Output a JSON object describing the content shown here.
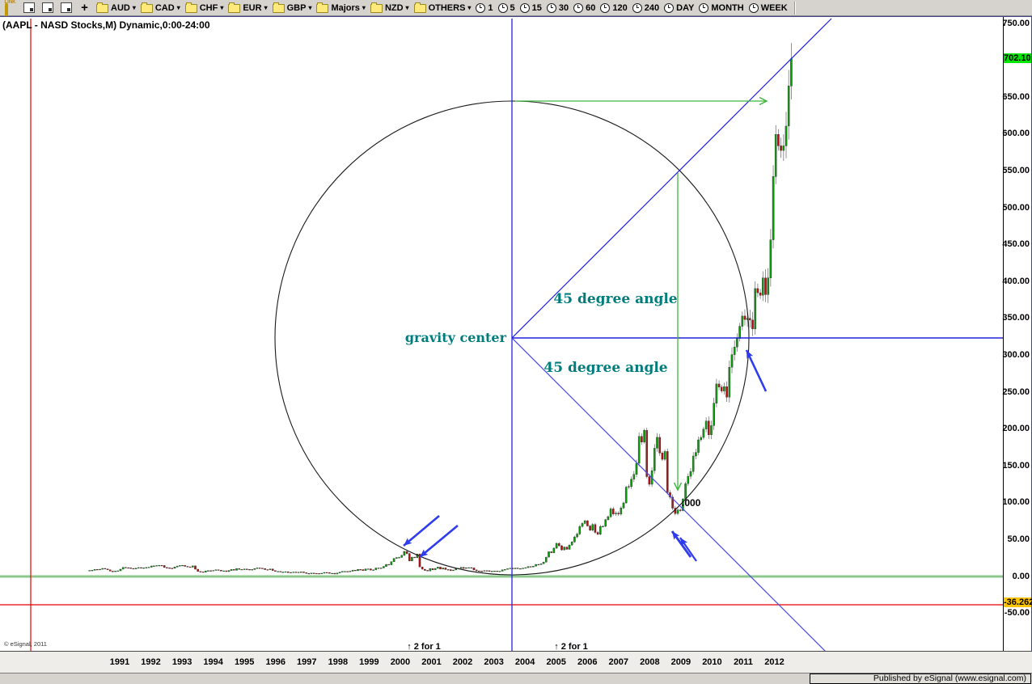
{
  "toolbar": {
    "window_icons": [
      {
        "name": "link-icon",
        "label": "LINK"
      },
      {
        "name": "new-chart-icon",
        "label": ""
      },
      {
        "name": "duplicate-chart-icon",
        "label": ""
      },
      {
        "name": "chart-properties-icon",
        "label": ""
      },
      {
        "name": "add-symbol-icon",
        "label": "+"
      }
    ],
    "symbol_folders": [
      "AUD",
      "CAD",
      "CHF",
      "EUR",
      "GBP",
      "Majors",
      "NZD",
      "OTHERS"
    ],
    "dropdown_glyph": "▾",
    "intervals": [
      "1",
      "5",
      "15",
      "30",
      "60",
      "120",
      "240",
      "DAY",
      "MONTH",
      "WEEK"
    ]
  },
  "chart": {
    "title": "(AAPL - NASD Stocks,M) Dynamic,0:00-24:00",
    "copyright": "© eSignal, 2011",
    "annotations": {
      "gravity_center": "gravity center",
      "angle_upper": "45 degree angle",
      "angle_lower": "45 degree angle",
      "split_left": "↑ 2 for 1",
      "split_right": "↑ 2 for 1",
      "price_note": ".000"
    },
    "price_axis": {
      "tick_values": [
        750,
        650,
        600,
        550,
        500,
        450,
        400,
        350,
        300,
        250,
        200,
        150,
        100,
        50,
        0,
        -50
      ],
      "last_price_label": {
        "text": "702.10",
        "value": 702.1
      },
      "alert_price_label": {
        "text": "-36.262",
        "value": -36.262
      }
    },
    "x_axis_years": [
      1991,
      1992,
      1993,
      1994,
      1995,
      1996,
      1997,
      1998,
      1999,
      2000,
      2001,
      2002,
      2003,
      2004,
      2005,
      2006,
      2007,
      2008,
      2009,
      2010,
      2011,
      2012
    ],
    "status_bar": {
      "published": "Published by eSignal (www.esignal.com)"
    }
  },
  "colors": {
    "accent_teal": "#007c7c",
    "line_blue": "#2222e0",
    "arrow_blue": "#2e3bee",
    "arrow_green": "#3cb83c",
    "grid_red": "#e80000",
    "zero_green": "#8cc88c",
    "candle_up": "#0a9e0a",
    "candle_down": "#b41414",
    "last_price_bg": "#00e600",
    "alert_price_bg": "#ffc400"
  },
  "chart_data": {
    "type": "candlestick",
    "symbol": "AAPL",
    "interval": "monthly",
    "title": "(AAPL - NASD Stocks,M) Dynamic,0:00-24:00",
    "start_month": "1990-01",
    "first_open": 8.0,
    "y_axis_range": [
      -57,
      757
    ],
    "x_axis_years": [
      1991,
      2012
    ],
    "last_price": 702.1,
    "alert_level": -36.262,
    "monthly_closes": {
      "1990": [
        8.2,
        8.4,
        9.7,
        9.5,
        9.8,
        11.0,
        10.2,
        9.1,
        7.2,
        6.9,
        7.3,
        7.7
      ],
      "1991": [
        9.9,
        12.4,
        12.0,
        11.7,
        10.9,
        10.1,
        11.2,
        12.1,
        11.4,
        11.7,
        12.2,
        12.6
      ],
      "1992": [
        14.2,
        14.4,
        14.8,
        15.1,
        14.9,
        12.2,
        11.7,
        11.2,
        11.0,
        12.8,
        14.1,
        14.9
      ],
      "1993": [
        15.1,
        13.7,
        13.1,
        12.7,
        14.4,
        9.9,
        6.8,
        6.4,
        5.8,
        7.6,
        7.9,
        7.3
      ],
      "1994": [
        8.2,
        9.1,
        8.5,
        7.3,
        7.7,
        6.6,
        8.1,
        9.5,
        8.4,
        10.8,
        9.6,
        9.7
      ],
      "1995": [
        10.1,
        9.7,
        8.8,
        9.5,
        10.8,
        11.6,
        11.3,
        10.7,
        9.3,
        9.1,
        10.2,
        8.0
      ],
      "1996": [
        6.9,
        6.9,
        6.1,
        6.1,
        6.5,
        5.2,
        5.5,
        6.0,
        5.5,
        5.8,
        6.2,
        5.2
      ],
      "1997": [
        4.2,
        4.1,
        4.6,
        4.3,
        4.2,
        3.6,
        4.4,
        5.5,
        5.4,
        4.3,
        4.4,
        3.3
      ],
      "1998": [
        4.6,
        5.9,
        6.9,
        6.9,
        6.7,
        7.2,
        8.6,
        7.8,
        9.5,
        9.3,
        8.0,
        10.2
      ],
      "1999": [
        10.3,
        8.7,
        9.0,
        11.5,
        11.0,
        11.6,
        13.6,
        16.3,
        15.8,
        20.0,
        24.5,
        25.7
      ],
      "2000": [
        25.9,
        28.6,
        33.9,
        31.0,
        21.0,
        26.2,
        25.4,
        30.4,
        12.9,
        9.8,
        8.3,
        7.4
      ],
      "2001": [
        10.8,
        9.1,
        11.0,
        12.7,
        10.0,
        11.6,
        9.4,
        9.3,
        7.8,
        8.8,
        10.6,
        11.0
      ],
      "2002": [
        12.4,
        10.9,
        11.8,
        12.1,
        11.6,
        8.9,
        7.6,
        7.4,
        7.3,
        8.0,
        7.8,
        7.2
      ],
      "2003": [
        7.2,
        7.5,
        7.1,
        7.1,
        9.0,
        9.5,
        10.5,
        11.3,
        10.4,
        11.4,
        10.5,
        10.7
      ],
      "2004": [
        11.3,
        12.0,
        13.5,
        12.9,
        14.0,
        16.3,
        16.2,
        17.3,
        19.4,
        26.2,
        33.5,
        32.2
      ],
      "2005": [
        38.4,
        44.9,
        41.7,
        36.1,
        39.8,
        36.8,
        42.6,
        46.9,
        53.6,
        57.6,
        67.8,
        71.9
      ],
      "2006": [
        75.5,
        68.5,
        62.7,
        70.4,
        59.8,
        57.3,
        67.9,
        68.0,
        77.0,
        81.1,
        91.7,
        84.8
      ],
      "2007": [
        85.7,
        84.6,
        92.9,
        99.8,
        121.2,
        122.0,
        131.8,
        138.5,
        153.5,
        189.9,
        182.2,
        198.1
      ],
      "2008": [
        135.4,
        125.0,
        143.5,
        173.9,
        188.7,
        167.4,
        158.9,
        169.5,
        113.7,
        107.6,
        92.7,
        85.4
      ],
      "2009": [
        90.1,
        89.3,
        105.1,
        125.8,
        135.8,
        142.4,
        163.4,
        168.2,
        185.3,
        188.5,
        199.9,
        210.7
      ],
      "2010": [
        192.1,
        204.6,
        235.0,
        261.1,
        256.9,
        251.5,
        257.3,
        243.1,
        283.8,
        300.9,
        311.2,
        322.6
      ],
      "2011": [
        339.3,
        353.2,
        348.5,
        350.1,
        347.8,
        335.7,
        390.5,
        384.8,
        381.3,
        404.8,
        382.2,
        405.0
      ],
      "2012": [
        456.5,
        542.4,
        599.6,
        584.0,
        577.7,
        584.0,
        610.8,
        665.2,
        702.1
      ]
    },
    "overlays": {
      "gravity_circle": {
        "center_price": 323.5,
        "center_time": "2003-10",
        "radius_price_units": 321
      },
      "horizontal_blue_line_price": 323.5,
      "diagonals": [
        "45-degrees-up-from-center",
        "45-degrees-down-from-center"
      ],
      "zero_line_price": 0,
      "red_horizontal_line_price": -36.262,
      "splits": [
        "2 for 1 (2000)",
        "2 for 1 (2005)"
      ]
    }
  }
}
